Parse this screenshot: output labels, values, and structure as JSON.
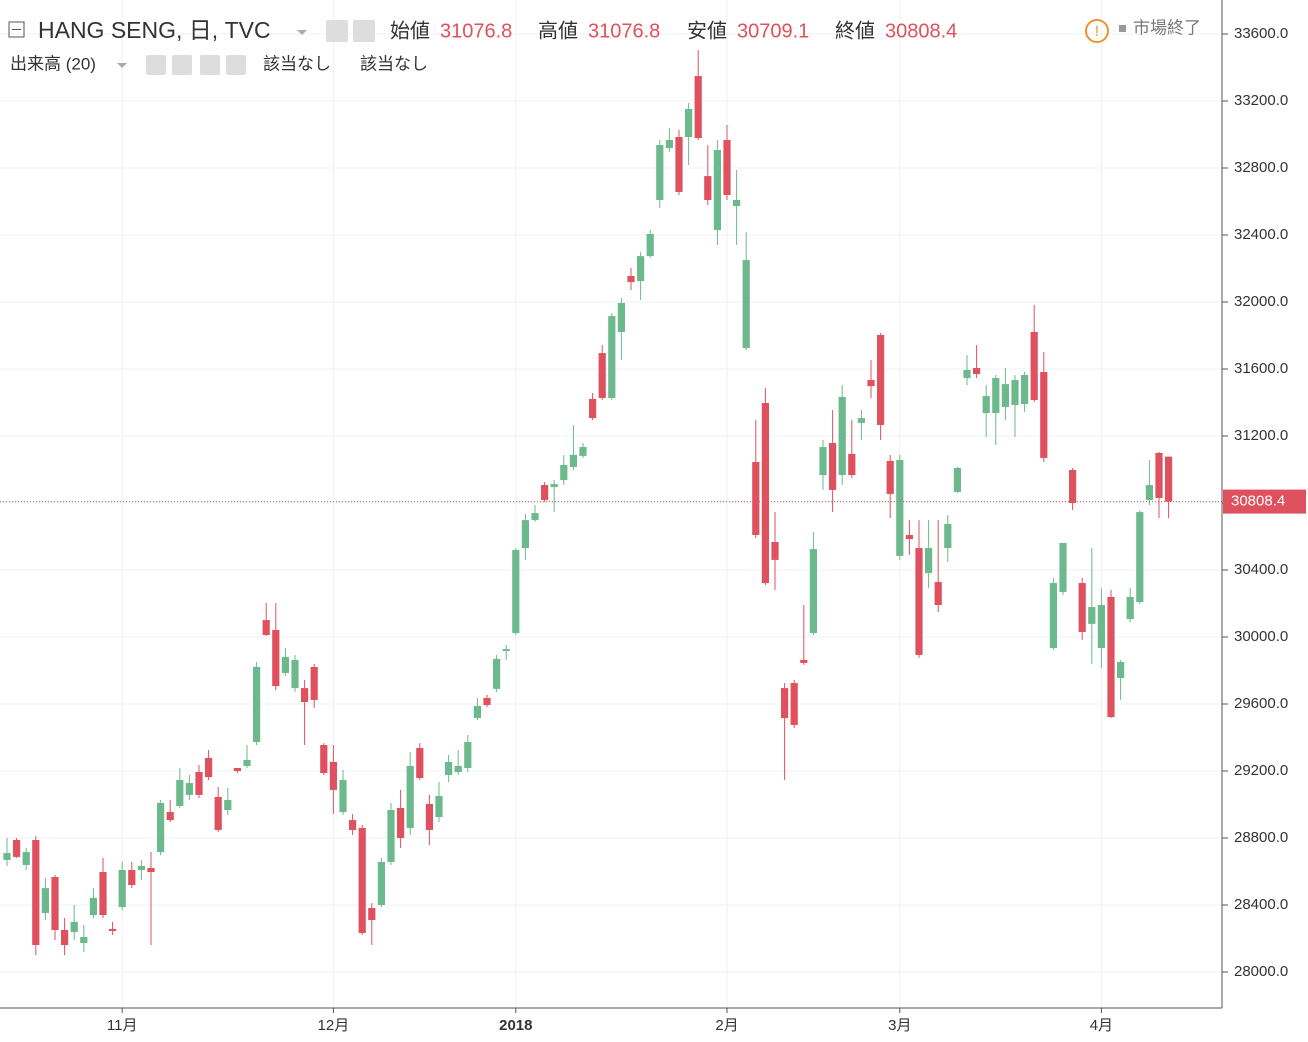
{
  "chart_data": {
    "type": "candlestick",
    "title": "HANG SENG, 日, TVC",
    "ohlc_labels": [
      "始値",
      "高値",
      "安値",
      "終値"
    ],
    "status": "市場終了",
    "indicator": "出来高 (20)",
    "indicator_values": [
      "該当なし",
      "該当なし"
    ],
    "categories": [
      null,
      null,
      null,
      null,
      null,
      null,
      null,
      null,
      null,
      null,
      null,
      null,
      "11月",
      null,
      null,
      null,
      null,
      null,
      null,
      null,
      null,
      null,
      null,
      null,
      null,
      null,
      null,
      null,
      null,
      null,
      null,
      null,
      null,
      null,
      "12月",
      null,
      null,
      null,
      null,
      null,
      null,
      null,
      null,
      null,
      null,
      null,
      null,
      null,
      null,
      null,
      null,
      null,
      null,
      "2018",
      null,
      null,
      null,
      null,
      null,
      null,
      null,
      null,
      null,
      null,
      null,
      null,
      null,
      null,
      null,
      null,
      null,
      null,
      null,
      null,
      null,
      "2月",
      null,
      null,
      null,
      null,
      null,
      null,
      null,
      null,
      null,
      null,
      null,
      null,
      null,
      null,
      null,
      null,
      null,
      "3月",
      null,
      null,
      null,
      null,
      null,
      null,
      null,
      null,
      null,
      null,
      null,
      null,
      null,
      null,
      null,
      null,
      null,
      null,
      null,
      null,
      "4月",
      null,
      null,
      null,
      null,
      null,
      null,
      null
    ],
    "open": [
      28669,
      28788,
      28639,
      28788,
      28352,
      28567,
      28251,
      28239,
      28173,
      28340,
      28597,
      28257,
      28388,
      28609,
      28609,
      28621,
      28716,
      28955,
      28991,
      29057,
      29194,
      29278,
      29045,
      28967,
      29218,
      29230,
      29373,
      30101,
      30042,
      29785,
      29695,
      29695,
      29821,
      29355,
      29254,
      28955,
      28907,
      28860,
      28382,
      28400,
      28657,
      28979,
      28860,
      29337,
      29003,
      28925,
      29176,
      29194,
      29218,
      29516,
      29636,
      29690,
      29916,
      30024,
      30531,
      30698,
      30907,
      30895,
      30937,
      31015,
      31081,
      31421,
      31695,
      31427,
      31821,
      32155,
      32125,
      32274,
      32609,
      32919,
      32985,
      32985,
      33349,
      32752,
      32430,
      32967,
      32573,
      31725,
      31045,
      31397,
      30567,
      29695,
      29725,
      29863,
      30024,
      30967,
      31158,
      30967,
      31093,
      31278,
      31534,
      31803,
      31051,
      30484,
      30609,
      30531,
      30382,
      30328,
      30531,
      30866,
      31546,
      31606,
      31337,
      31337,
      31373,
      31385,
      31391,
      31821,
      31582,
      29934,
      30269,
      30997,
      30322,
      30078,
      29934,
      30239,
      29755,
      30107,
      30209,
      30818,
      31099,
      31076.8
    ],
    "high": [
      28800,
      28800,
      28740,
      28812,
      28561,
      28579,
      28322,
      28400,
      28281,
      28501,
      28681,
      28299,
      28657,
      28657,
      28669,
      28716,
      29027,
      29027,
      29218,
      29176,
      29236,
      29325,
      29104,
      29099,
      29218,
      29355,
      29851,
      30203,
      30203,
      29934,
      29892,
      29743,
      29839,
      29367,
      29355,
      29206,
      28943,
      28878,
      28412,
      28681,
      29009,
      29087,
      29313,
      29367,
      29057,
      29134,
      29296,
      29325,
      29415,
      29636,
      29654,
      29892,
      29952,
      30531,
      30734,
      30788,
      30925,
      30937,
      31086,
      31266,
      31158,
      31457,
      31743,
      31934,
      32024,
      32203,
      32298,
      32430,
      32967,
      33039,
      33027,
      33188,
      33504,
      32937,
      32967,
      33057,
      32788,
      32418,
      31295,
      31487,
      30746,
      29725,
      29743,
      30191,
      30627,
      31176,
      31355,
      31504,
      31295,
      31355,
      31654,
      31815,
      31087,
      31087,
      30698,
      30698,
      30698,
      30698,
      30728,
      31015,
      31683,
      31743,
      31504,
      31564,
      31606,
      31564,
      31582,
      31982,
      31701,
      30352,
      30561,
      31009,
      30352,
      30531,
      30292,
      30281,
      29863,
      30292,
      30758,
      31057,
      31105,
      31076.8
    ],
    "low": [
      28633,
      28681,
      28609,
      28101,
      28310,
      28191,
      28101,
      28191,
      28119,
      28322,
      28322,
      28221,
      28370,
      28501,
      28549,
      28161,
      28698,
      28895,
      28979,
      29027,
      29039,
      29146,
      28836,
      28937,
      29188,
      29218,
      29355,
      30006,
      29683,
      29767,
      29672,
      29355,
      29576,
      29176,
      28943,
      28937,
      28818,
      28221,
      28161,
      28388,
      28639,
      28740,
      28818,
      29146,
      28758,
      28895,
      29134,
      29176,
      29194,
      29504,
      29582,
      29672,
      29863,
      30012,
      30460,
      30687,
      30806,
      30746,
      30907,
      30997,
      31069,
      31295,
      31415,
      31415,
      31654,
      32072,
      32012,
      32263,
      32561,
      32895,
      32639,
      32818,
      32967,
      32579,
      32340,
      32609,
      32340,
      31713,
      30591,
      30310,
      30281,
      29146,
      29457,
      29833,
      30012,
      30878,
      30746,
      30907,
      30949,
      31176,
      31427,
      31176,
      30710,
      30460,
      30490,
      29875,
      30292,
      30149,
      30448,
      30860,
      31504,
      31546,
      31194,
      31146,
      31295,
      31194,
      31343,
      31403,
      31045,
      29922,
      30251,
      30758,
      29982,
      29839,
      29815,
      29516,
      29624,
      30089,
      30197,
      30788,
      30710,
      30709.1
    ],
    "close": [
      28710,
      28687,
      28716,
      28161,
      28501,
      28251,
      28161,
      28299,
      28209,
      28442,
      28340,
      28245,
      28609,
      28519,
      28633,
      28597,
      29009,
      28907,
      29146,
      29128,
      29057,
      29164,
      28848,
      29027,
      29200,
      29266,
      29821,
      30012,
      29707,
      29881,
      29863,
      29612,
      29624,
      29188,
      29087,
      29146,
      28848,
      28233,
      28310,
      28657,
      28967,
      28800,
      29230,
      29158,
      28848,
      29051,
      29254,
      29230,
      29373,
      29588,
      29594,
      29869,
      29928,
      30519,
      30698,
      30740,
      30818,
      30913,
      31027,
      31087,
      31134,
      31307,
      31427,
      31916,
      31994,
      32119,
      32274,
      32406,
      32937,
      32967,
      32657,
      33152,
      32979,
      32609,
      32907,
      32639,
      32609,
      32251,
      30609,
      30322,
      30460,
      29516,
      29475,
      29845,
      30525,
      31134,
      30878,
      31433,
      30967,
      31307,
      31498,
      31266,
      30854,
      31057,
      30585,
      29893,
      30531,
      30191,
      30675,
      31009,
      31594,
      31570,
      31439,
      31546,
      31510,
      31534,
      31564,
      31415,
      31069,
      30322,
      30561,
      30800,
      30030,
      30179,
      30191,
      29522,
      29851,
      30239,
      30746,
      30907,
      30830,
      30808.4
    ],
    "colors": {
      "up": "#6cb98d",
      "down": "#e0515f"
    },
    "ylim": [
      27785,
      33803
    ],
    "yticks": [
      {
        "value": 28000,
        "label": "28000.0"
      },
      {
        "value": 28400,
        "label": "28400.0"
      },
      {
        "value": 28800,
        "label": "28800.0"
      },
      {
        "value": 29200,
        "label": "29200.0"
      },
      {
        "value": 29600,
        "label": "29600.0"
      },
      {
        "value": 30000,
        "label": "30000.0"
      },
      {
        "value": 30400,
        "label": "30400.0"
      },
      {
        "value": 30800,
        "label": "30800.0"
      },
      {
        "value": 31200,
        "label": "31200.0"
      },
      {
        "value": 31600,
        "label": "31600.0"
      },
      {
        "value": 32000,
        "label": "32000.0"
      },
      {
        "value": 32400,
        "label": "32400.0"
      },
      {
        "value": 32800,
        "label": "32800.0"
      },
      {
        "value": 33200,
        "label": "33200.0"
      },
      {
        "value": 33600,
        "label": "33600.0"
      }
    ],
    "grid": true
  }
}
